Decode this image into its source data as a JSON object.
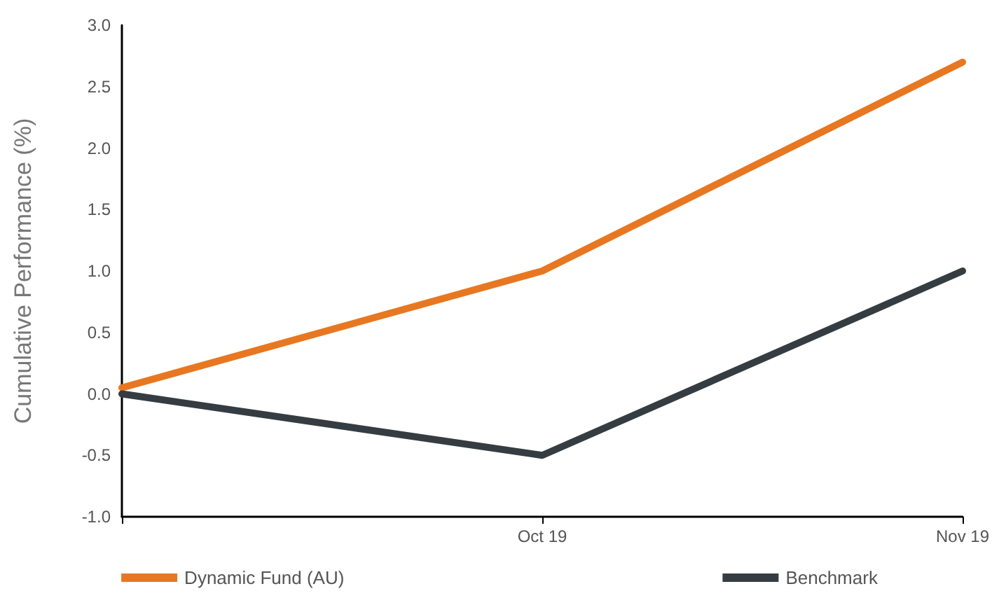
{
  "chart_data": {
    "type": "line",
    "ylabel": "Cumulative Performance (%)",
    "categories": [
      null,
      "Oct 19",
      "Nov 19"
    ],
    "series": [
      {
        "name": "Dynamic Fund (AU)",
        "color": "#e87722",
        "values": [
          0.05,
          1.0,
          2.7
        ]
      },
      {
        "name": "Benchmark",
        "color": "#353d42",
        "values": [
          0.0,
          -0.5,
          1.0
        ]
      }
    ],
    "ylim": [
      -1,
      3
    ],
    "yticks": [
      {
        "value": -1,
        "label": "-1.0"
      },
      {
        "value": -0.5,
        "label": "-0.5"
      },
      {
        "value": 0,
        "label": "0.0"
      },
      {
        "value": 0.5,
        "label": "0.5"
      },
      {
        "value": 1,
        "label": "1.0"
      },
      {
        "value": 1.5,
        "label": "1.5"
      },
      {
        "value": 2,
        "label": "2.0"
      },
      {
        "value": 2.5,
        "label": "2.5"
      },
      {
        "value": 3,
        "label": "3.0"
      }
    ],
    "grid": false,
    "legend": "bottom",
    "marker": "none",
    "line_style": "solid"
  }
}
